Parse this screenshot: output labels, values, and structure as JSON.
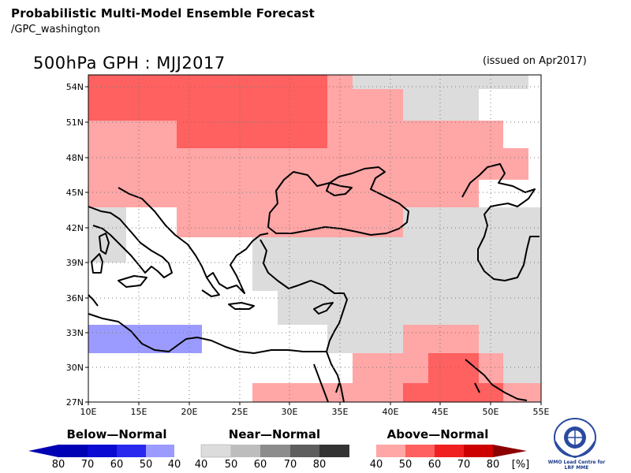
{
  "header": {
    "title": "Probabilistic Multi-Model Ensemble Forecast",
    "subtitle": "/GPC_washington",
    "plot_title": "500hPa GPH : MJJ2017",
    "issued": "(issued on Apr2017)"
  },
  "map": {
    "lon_range": [
      10,
      55
    ],
    "lat_range": [
      27,
      55.5
    ],
    "lon_ticks": [
      "10E",
      "15E",
      "20E",
      "25E",
      "30E",
      "35E",
      "40E",
      "45E",
      "50E",
      "55E"
    ],
    "lat_ticks": [
      "27N",
      "30N",
      "33N",
      "36N",
      "39N",
      "42N",
      "45N",
      "48N",
      "51N",
      "54N"
    ]
  },
  "legend": {
    "below": {
      "title": "Below—Normal",
      "labels": [
        "80",
        "70",
        "60",
        "50",
        "40"
      ],
      "colors": [
        "#0000b4",
        "#0a0ad2",
        "#2828ef",
        "#5a5aff",
        "#9b9bff"
      ]
    },
    "near": {
      "title": "Near—Normal",
      "labels": [
        "40",
        "50",
        "60",
        "70",
        "80"
      ],
      "colors": [
        "#dcdcdc",
        "#bdbdbd",
        "#8c8c8c",
        "#5e5e5e",
        "#333333"
      ]
    },
    "above": {
      "title": "Above—Normal",
      "labels": [
        "40",
        "50",
        "60",
        "70",
        "80"
      ],
      "unit": "[%]",
      "colors": [
        "#ffa6a6",
        "#ff6060",
        "#f02020",
        "#cc0000",
        "#8c0000"
      ]
    }
  },
  "logo": {
    "line1": "WMO Lead Centre for",
    "line2": "LRF MME"
  }
}
